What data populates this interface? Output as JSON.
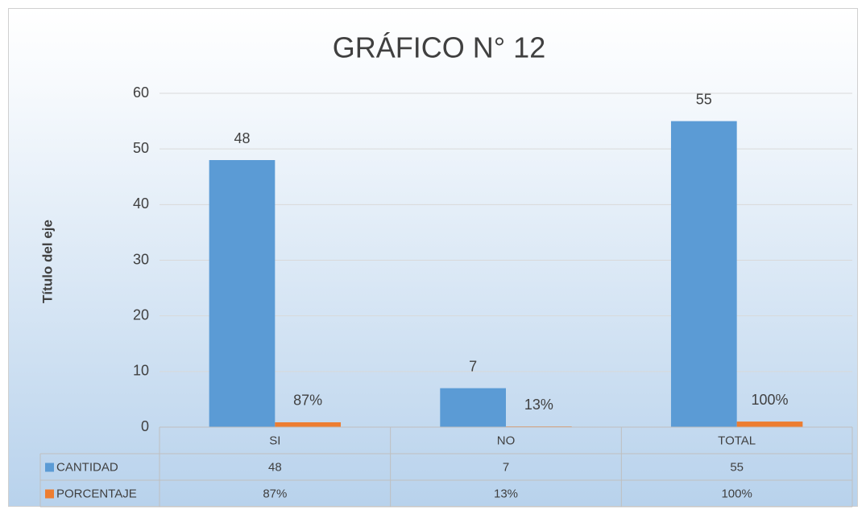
{
  "chart_data": {
    "type": "bar",
    "title": "GRÁFICO N° 12",
    "y_label": "Título del eje",
    "categories": [
      "SI",
      "NO",
      "TOTAL"
    ],
    "series": [
      {
        "name": "CANTIDAD",
        "color": "#5b9bd5",
        "values": [
          48,
          7,
          55
        ]
      },
      {
        "name": "PORCENTAJE",
        "color": "#ed7d31",
        "values": [
          0.87,
          0.13,
          1.0
        ],
        "value_labels": [
          "87%",
          "13%",
          "100%"
        ]
      }
    ],
    "ylim": [
      0,
      60
    ],
    "yticks": [
      0,
      10,
      20,
      30,
      40,
      50,
      60
    ],
    "grid": true,
    "data_table": true
  }
}
